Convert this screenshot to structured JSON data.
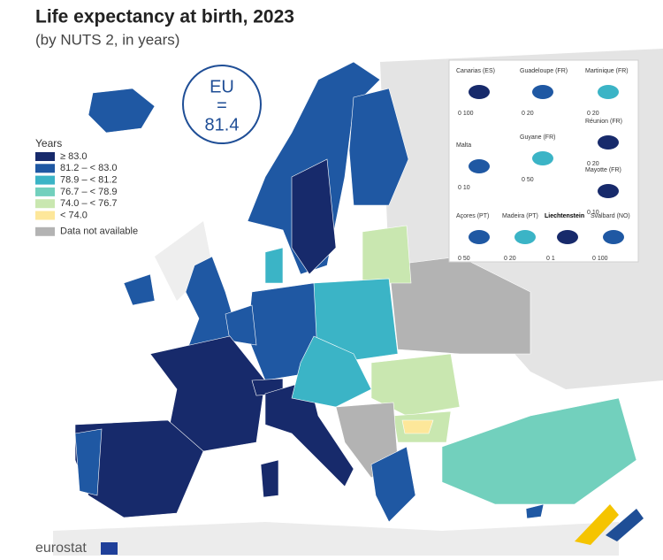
{
  "title": "Life expectancy at birth, 2023",
  "subtitle": "(by NUTS 2, in years)",
  "eu_badge": {
    "label": "EU",
    "symbol": "=",
    "value": 81.4
  },
  "legend": {
    "title": "Years",
    "items": [
      {
        "label": "≥ 83.0",
        "color": "#172a6b"
      },
      {
        "label": "81.2 – < 83.0",
        "color": "#1f58a3"
      },
      {
        "label": "78.9 – < 81.2",
        "color": "#3bb4c6"
      },
      {
        "label": "76.7 – < 78.9",
        "color": "#72d0bd"
      },
      {
        "label": "74.0 – < 76.7",
        "color": "#c9e7b0"
      },
      {
        "label": "< 74.0",
        "color": "#fde79a"
      },
      {
        "label": "Data not available",
        "color": "#b3b3b3"
      }
    ]
  },
  "insets": [
    {
      "name": "Canarias (ES)",
      "scale": "0 100"
    },
    {
      "name": "Guadeloupe (FR)",
      "scale": "0 20"
    },
    {
      "name": "Martinique (FR)",
      "scale": "0 20"
    },
    {
      "name": "Réunion (FR)",
      "scale": "0 20"
    },
    {
      "name": "Malta",
      "scale": "0 10"
    },
    {
      "name": "Guyane (FR)",
      "scale": "0 50"
    },
    {
      "name": "Mayotte (FR)",
      "scale": "0 10"
    },
    {
      "name": "Açores (PT)",
      "scale": "0 50"
    },
    {
      "name": "Madeira (PT)",
      "scale": "0 20"
    },
    {
      "name": "Liechtenstein",
      "scale": "0 1"
    },
    {
      "name": "Svalbard (NO)",
      "scale": "0 100"
    }
  ],
  "logo": "eurostat"
}
